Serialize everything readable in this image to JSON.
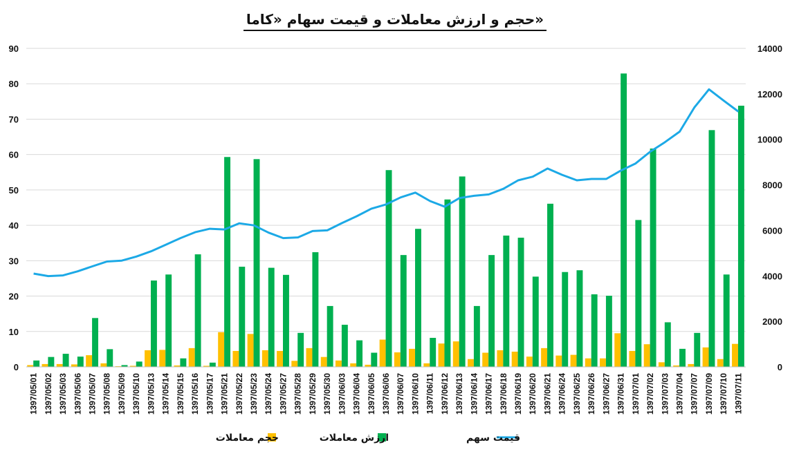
{
  "chart_data": {
    "type": "bar",
    "title": "حجم و ارزش معاملات و قیمت سهام «کاما»",
    "categories": [
      "1397/05/01",
      "1397/05/02",
      "1397/05/03",
      "1397/05/06",
      "1397/05/07",
      "1397/05/08",
      "1397/05/09",
      "1397/05/10",
      "1397/05/13",
      "1397/05/14",
      "1397/05/15",
      "1397/05/16",
      "1397/05/17",
      "1397/05/21",
      "1397/05/22",
      "1397/05/23",
      "1397/05/24",
      "1397/05/27",
      "1397/05/28",
      "1397/05/29",
      "1397/05/30",
      "1397/06/03",
      "1397/06/04",
      "1397/06/05",
      "1397/06/06",
      "1397/06/07",
      "1397/06/10",
      "1397/06/11",
      "1397/06/12",
      "1397/06/13",
      "1397/06/14",
      "1397/06/17",
      "1397/06/18",
      "1397/06/19",
      "1397/06/20",
      "1397/06/21",
      "1397/06/24",
      "1397/06/25",
      "1397/06/26",
      "1397/06/27",
      "1397/06/31",
      "1397/07/01",
      "1397/07/02",
      "1397/07/03",
      "1397/07/04",
      "1397/07/07",
      "1397/07/09",
      "1397/07/10",
      "1397/07/11"
    ],
    "series": [
      {
        "name": "حجم معاملات",
        "type": "bar",
        "axis": "left",
        "color": "#FFC000",
        "values": [
          0.5,
          0.8,
          0.8,
          0.7,
          3.3,
          1.0,
          0.2,
          0.3,
          4.7,
          4.8,
          0.4,
          5.3,
          0.3,
          9.8,
          4.5,
          9.3,
          4.7,
          4.5,
          1.7,
          5.3,
          2.8,
          1.8,
          1.0,
          0.6,
          7.7,
          4.1,
          5.1,
          1.0,
          6.6,
          7.2,
          2.2,
          4.0,
          4.7,
          4.3,
          2.9,
          5.3,
          3.2,
          3.4,
          2.4,
          2.4,
          9.5,
          4.5,
          6.4,
          1.3,
          0.4,
          0.8,
          5.5,
          2.2,
          6.5
        ]
      },
      {
        "name": "ارزش معاملات",
        "type": "bar",
        "axis": "left",
        "color": "#00B050",
        "values": [
          1.8,
          2.8,
          3.7,
          2.9,
          13.8,
          5.0,
          0.5,
          1.5,
          24.4,
          26.1,
          2.4,
          31.8,
          1.2,
          59.3,
          28.3,
          58.7,
          28.0,
          26.0,
          9.6,
          32.4,
          17.2,
          11.9,
          7.5,
          4.0,
          55.6,
          31.6,
          39.0,
          8.2,
          47.3,
          53.8,
          17.2,
          31.6,
          37.1,
          36.5,
          25.5,
          46.1,
          26.8,
          27.3,
          20.5,
          20.1,
          82.9,
          41.5,
          61.7,
          12.6,
          5.1,
          9.6,
          66.9,
          26.1,
          73.8
        ]
      },
      {
        "name": "قیمت سهم",
        "type": "line",
        "axis": "right",
        "color": "#1CA9E6",
        "values": [
          4100,
          3990,
          4020,
          4200,
          4420,
          4630,
          4670,
          4850,
          5080,
          5370,
          5660,
          5920,
          6070,
          6040,
          6310,
          6220,
          5900,
          5660,
          5690,
          5970,
          6000,
          6320,
          6620,
          6950,
          7140,
          7450,
          7660,
          7290,
          7040,
          7420,
          7520,
          7580,
          7830,
          8200,
          8360,
          8720,
          8440,
          8200,
          8260,
          8260,
          8630,
          8940,
          9460,
          9880,
          10340,
          11400,
          12200,
          11700,
          11220
        ]
      }
    ],
    "y_left": {
      "min": 0,
      "max": 90,
      "ticks": [
        0,
        10,
        20,
        30,
        40,
        50,
        60,
        70,
        80,
        90
      ]
    },
    "y_right": {
      "min": 0,
      "max": 14000,
      "ticks": [
        0,
        2000,
        4000,
        6000,
        8000,
        10000,
        12000,
        14000
      ]
    },
    "grid": true,
    "legend_position": "bottom"
  }
}
